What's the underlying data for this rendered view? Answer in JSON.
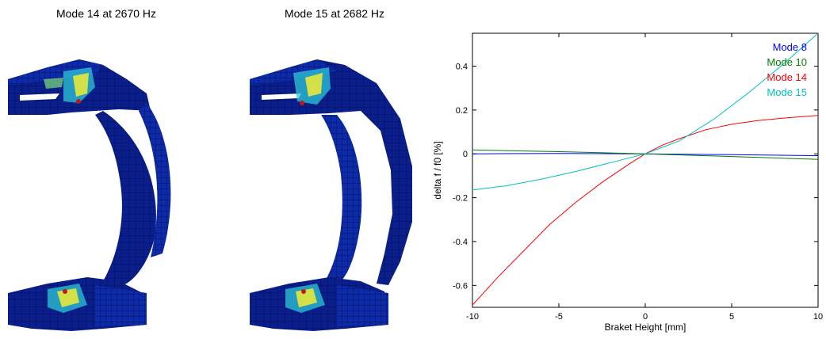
{
  "panels": [
    {
      "title": "Mode 14 at 2670 Hz"
    },
    {
      "title": "Mode 15 at 2682 Hz"
    }
  ],
  "colors": {
    "mesh_base": "#0a1e8c",
    "mesh_dark": "#061064",
    "hot_cyan": "#2ec8d8",
    "hot_yellow": "#e8e83a",
    "hot_green": "#7fe07a",
    "hot_red": "#c01818"
  },
  "chart_data": {
    "type": "line",
    "xlabel": "Braket Height [mm]",
    "ylabel": "delta f / f0 [%]",
    "xlim": [
      -10,
      10
    ],
    "ylim": [
      -0.7,
      0.55
    ],
    "xticks": [
      -10,
      -5,
      0,
      5,
      10
    ],
    "yticks": [
      -0.6,
      -0.4,
      -0.2,
      0,
      0.2,
      0.4
    ],
    "ytick_labels": [
      "-0.6",
      "-0.4",
      "-0.2",
      "0",
      "0.2",
      "0.4"
    ],
    "xtick_labels": [
      "-10",
      "-5",
      "0",
      "5",
      "10"
    ],
    "legend_placement": "top-right",
    "grid": false,
    "series": [
      {
        "name": "Mode 8",
        "color": "#0000ff",
        "x": [
          -10,
          -5,
          0,
          5,
          10
        ],
        "y": [
          0.0,
          0.002,
          0.0,
          -0.004,
          -0.008
        ]
      },
      {
        "name": "Mode 10",
        "color": "#008000",
        "x": [
          -10,
          -5,
          0,
          5,
          10
        ],
        "y": [
          0.018,
          0.01,
          0.0,
          -0.012,
          -0.025
        ]
      },
      {
        "name": "Mode 14",
        "color": "#ff0000",
        "x": [
          -10,
          -8.5,
          -7,
          -5.5,
          -4,
          -2.5,
          -1,
          0,
          1,
          2,
          3.5,
          5,
          6.5,
          8,
          10
        ],
        "y": [
          -0.69,
          -0.56,
          -0.44,
          -0.32,
          -0.22,
          -0.13,
          -0.05,
          0.0,
          0.04,
          0.07,
          0.11,
          0.135,
          0.152,
          0.163,
          0.175
        ]
      },
      {
        "name": "Mode 15",
        "color": "#00bfbf",
        "x": [
          -10,
          -8,
          -6,
          -4,
          -2,
          -1,
          0,
          1,
          2,
          4,
          6,
          8,
          10
        ],
        "y": [
          -0.165,
          -0.145,
          -0.115,
          -0.08,
          -0.04,
          -0.02,
          0.0,
          0.03,
          0.06,
          0.16,
          0.28,
          0.41,
          0.55
        ]
      }
    ]
  }
}
